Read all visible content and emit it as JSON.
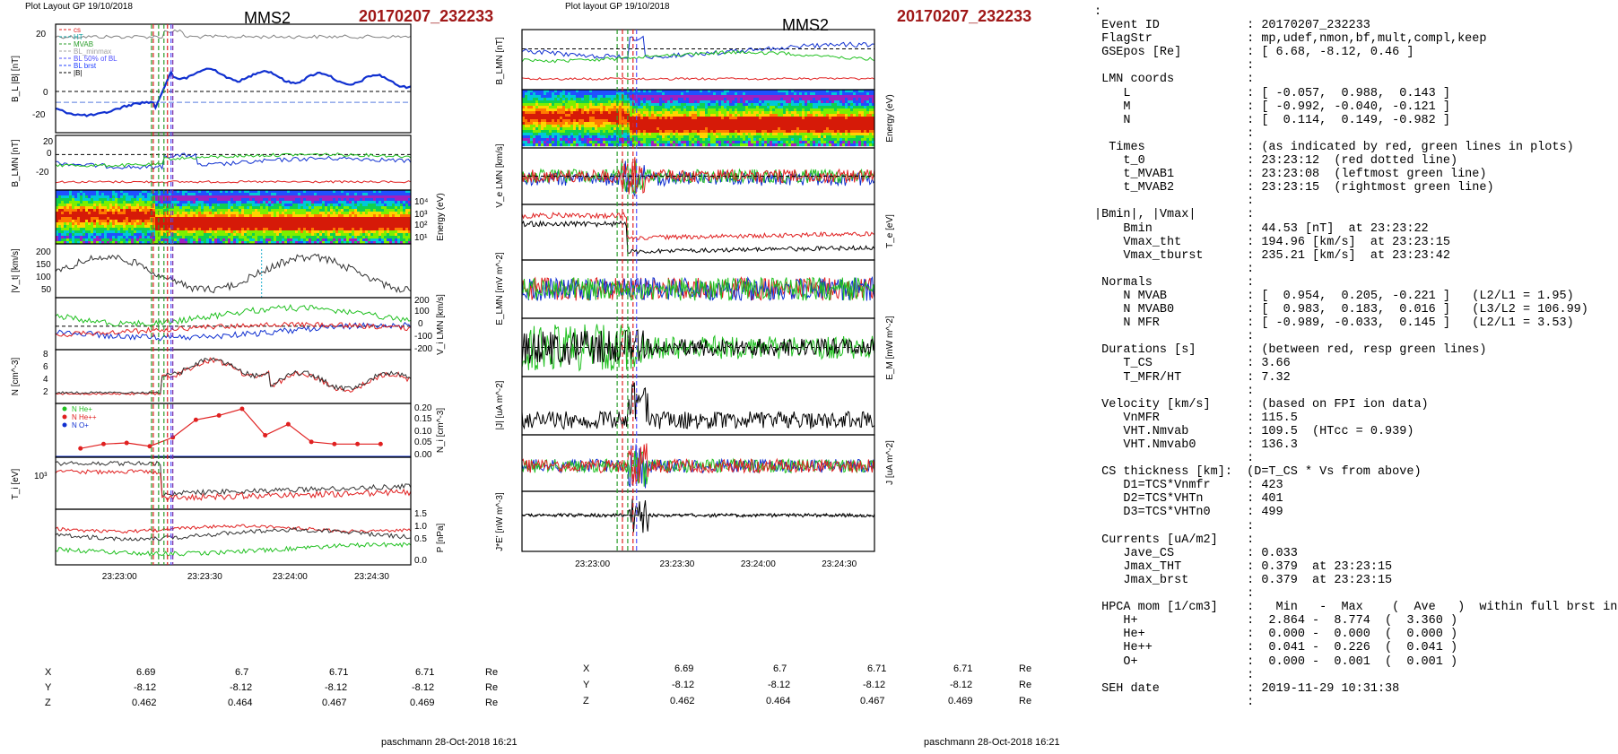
{
  "left": {
    "header": "Plot Layout GP 19/10/2018",
    "spacecraft": "MMS2",
    "event": "20170207_232233",
    "footer": "paschmann 28-Oct-2018 16:21",
    "ylabels": [
      "B_L |B| [nT]",
      "B_LMN [nT]",
      "Energy (eV)",
      "|V_t| [km/s]",
      "V_i LMN [km/s]",
      "N [cm^-3]",
      "N_i [cm^-3]",
      "T_i [eV]",
      "P [nPa]"
    ],
    "legend_top": [
      "cs",
      "HT",
      "MVAB",
      "BL_minmax",
      "BL 50% of BL",
      "BL brst",
      "|B|"
    ],
    "legend_hpca": [
      "N  He+",
      "N  He++",
      "N  O+"
    ],
    "hpca_values": [
      0.04,
      0.06,
      0.065,
      0.05,
      0.09,
      0.17,
      0.19,
      0.22,
      0.1,
      0.15,
      0.07,
      0.06,
      0.06,
      0.06
    ],
    "xticks": [
      "23:23:00",
      "23:23:30",
      "23:24:00",
      "23:24:30"
    ],
    "coords": {
      "X": [
        "6.69",
        "6.7",
        "6.71",
        "6.71"
      ],
      "Y": [
        "-8.12",
        "-8.12",
        "-8.12",
        "-8.12"
      ],
      "Z": [
        "0.462",
        "0.464",
        "0.467",
        "0.469"
      ],
      "unit": "Re"
    }
  },
  "middle": {
    "header": "Plot layout GP 19/10/2018",
    "spacecraft": "MMS2",
    "event": "20170207_232233",
    "footer": "paschmann 28-Oct-2018 16:21",
    "ylabels": [
      "B_LMN [nT]",
      "Energy (eV)",
      "V_e LMN [km/s]",
      "T_e [eV]",
      "E_LMN [mV m^-2]",
      "E_M [mW m^-2]",
      "|J| [uA m^-2]",
      "J [uA m^-2]",
      "J*E' [nW m^-3]"
    ],
    "xticks": [
      "23:23:00",
      "23:23:30",
      "23:24:00",
      "23:24:30"
    ],
    "coords": {
      "X": [
        "6.69",
        "6.7",
        "6.71",
        "6.71"
      ],
      "Y": [
        "-8.12",
        "-8.12",
        "-8.12",
        "-8.12"
      ],
      "Z": [
        "0.462",
        "0.464",
        "0.467",
        "0.469"
      ],
      "unit": "Re"
    }
  },
  "text_panel": [
    ":",
    " Event ID            : 20170207_232233",
    " FlagStr             : mp,udef,nmon,bf,mult,compl,keep",
    " GSEpos [Re]         : [ 6.68, -8.12, 0.46 ]",
    "                     :",
    " LMN coords          :",
    "    L                : [ -0.057,  0.988,  0.143 ]",
    "    M                : [ -0.992, -0.040, -0.121 ]",
    "    N                : [  0.114,  0.149, -0.982 ]",
    "                     :",
    "  Times              : (as indicated by red, green lines in plots)",
    "    t_0              : 23:23:12  (red dotted line)",
    "    t_MVAB1          : 23:23:08  (leftmost green line)",
    "    t_MVAB2          : 23:23:15  (rightmost green line)",
    "                     :",
    "|Bmin|, |Vmax|       :",
    "    Bmin             : 44.53 [nT]  at 23:23:22",
    "    Vmax_tht         : 194.96 [km/s]  at 23:23:15",
    "    Vmax_tburst      : 235.21 [km/s]  at 23:23:42",
    "                     :",
    " Normals             :",
    "    N MVAB           : [  0.954,  0.205, -0.221 ]   (L2/L1 = 1.95)",
    "    N MVAB0          : [  0.983,  0.183,  0.016 ]   (L3/L2 = 106.99)",
    "    N MFR            : [ -0.989, -0.033,  0.145 ]   (L2/L1 = 3.53)",
    "                     :",
    " Durations [s]       : (between red, resp green lines)",
    "    T_CS             : 3.66",
    "    T_MFR/HT         : 7.32",
    "                     :",
    " Velocity [km/s]     : (based on FPI ion data)",
    "    VnMFR            : 115.5",
    "    VHT.Nmvab        : 109.5  (HTcc = 0.939)",
    "    VHT.Nmvab0       : 136.3",
    "                     :",
    " CS thickness [km]:  (D=T_CS * Vs from above)",
    "    D1=TCS*Vnmfr     : 423",
    "    D2=TCS*VHTn      : 401",
    "    D3=TCS*VHTn0     : 499",
    "                     :",
    " Currents [uA/m2]    :",
    "    Jave_CS          : 0.033",
    "    Jmax_THT         : 0.379  at 23:23:15",
    "    Jmax_brst        : 0.379  at 23:23:15",
    "                     :",
    " HPCA mom [1/cm3]    :   Min   -  Max    (  Ave   )  within full brst int",
    "    H+               :  2.864 -  8.774  (  3.360 )",
    "    He+              :  0.000 -  0.000  (  0.000 )",
    "    He++             :  0.041 -  0.226  (  0.041 )",
    "    O+               :  0.000 -  0.001  (  0.001 )",
    "                     :",
    " SEH date            : 2019-11-29 10:31:38",
    "                     :"
  ]
}
